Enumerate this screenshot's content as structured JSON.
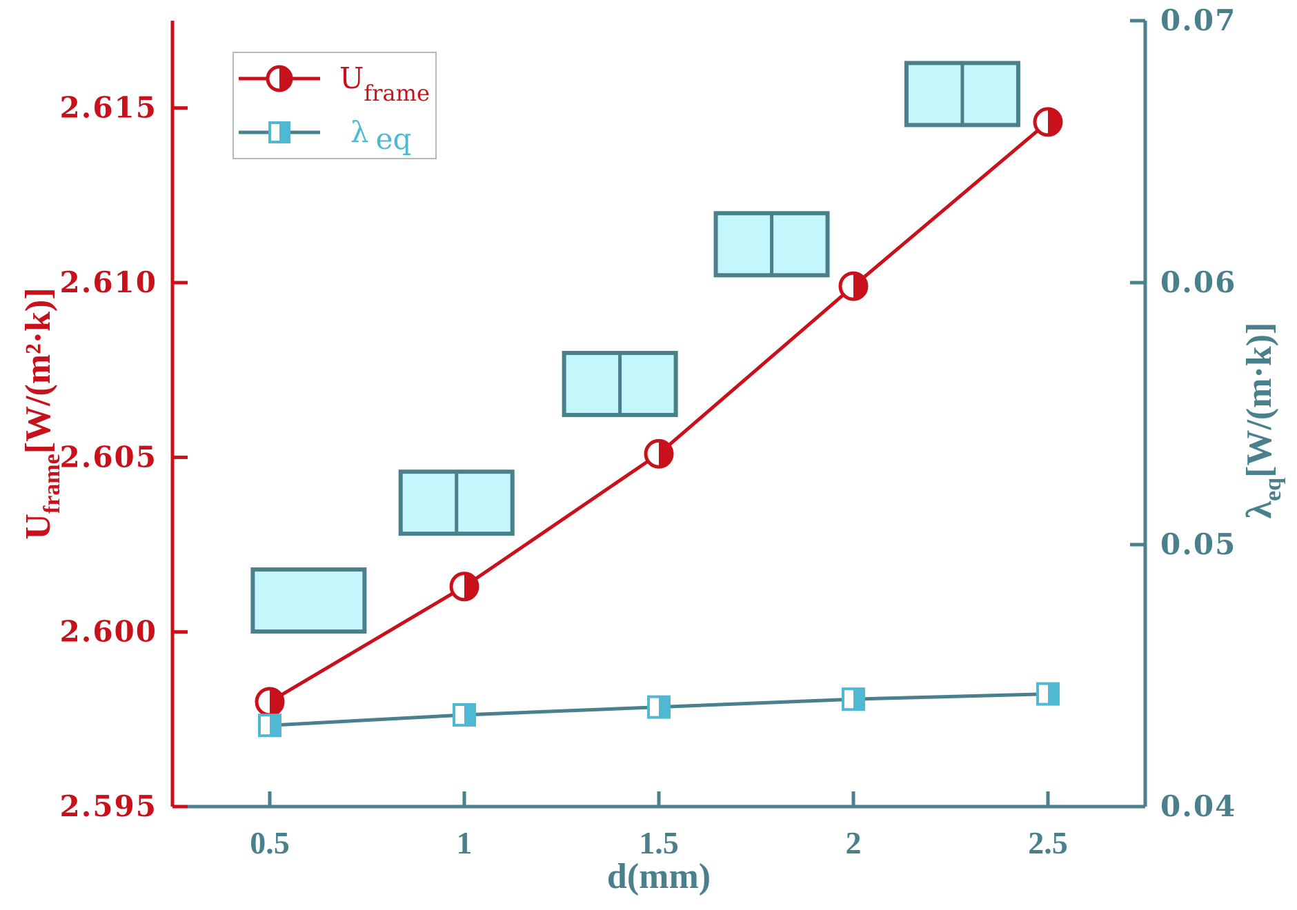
{
  "chart_data": {
    "type": "line",
    "x": [
      0.5,
      1,
      1.5,
      2,
      2.5
    ],
    "xlim": [
      0.25,
      2.75
    ],
    "x_ticks": [
      "0.5",
      "1",
      "1.5",
      "2",
      "2.5"
    ],
    "xlabel": "d(mm)",
    "series": [
      {
        "name": "U_frame",
        "name_main": "U",
        "name_sub": "frame",
        "axis": "left",
        "color": "#c8111b",
        "marker": "half-filled-circle",
        "values": [
          2.598,
          2.6013,
          2.6051,
          2.6099,
          2.6146
        ]
      },
      {
        "name": "λeq",
        "name_main": "λ",
        "name_sub": "eq",
        "axis": "right",
        "color": "#4a7f8c",
        "marker_color": "#4fb8d3",
        "marker": "half-filled-square",
        "values": [
          0.0431,
          0.0435,
          0.0438,
          0.0441,
          0.0443
        ]
      }
    ],
    "y_left": {
      "label_main": "U",
      "label_sub": "frame",
      "label_unit": "[W/(m²·k)]",
      "ylim": [
        2.595,
        2.6175
      ],
      "ticks": [
        "2.595",
        "2.600",
        "2.605",
        "2.610",
        "2.615"
      ],
      "color": "#c8111b"
    },
    "y_right": {
      "label_main": "λ",
      "label_sub": "eq",
      "label_unit": "[W/(m·k)]",
      "ylim": [
        0.04,
        0.07
      ],
      "ticks": [
        "0.04",
        "0.05",
        "0.06",
        "0.07"
      ],
      "color": "#4a7f8c"
    },
    "legend_position": "top-left",
    "grid": false,
    "icons": [
      {
        "x_center": 0.6,
        "y_level": 2.6009,
        "divided": false
      },
      {
        "x_center": 0.98,
        "y_level": 2.6037,
        "divided": true
      },
      {
        "x_center": 1.4,
        "y_level": 2.6071,
        "divided": true
      },
      {
        "x_center": 1.79,
        "y_level": 2.6111,
        "divided": true
      },
      {
        "x_center": 2.28,
        "y_level": 2.6154,
        "divided": true
      }
    ],
    "icon_fill": "#c4f7fb",
    "icon_stroke": "#4a7f8c"
  }
}
